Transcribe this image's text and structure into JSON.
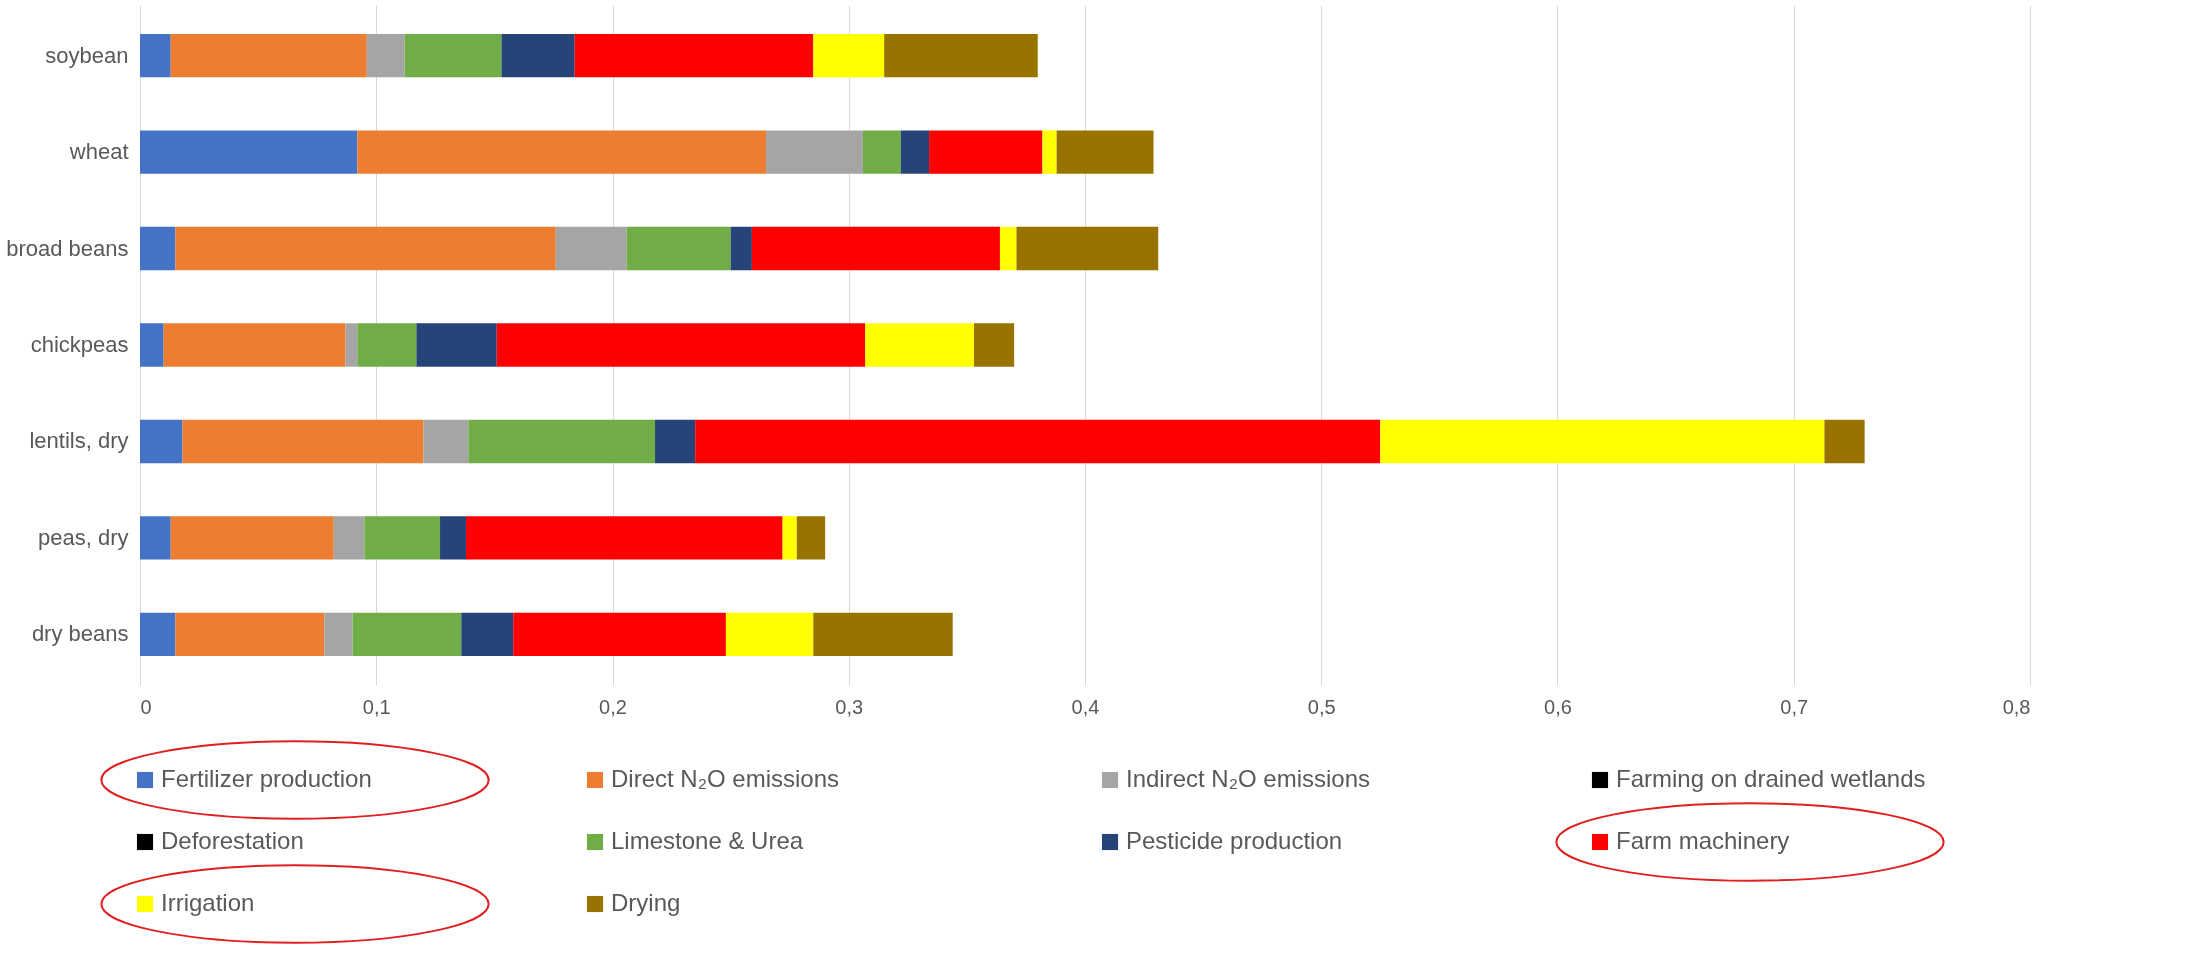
{
  "chart_data": {
    "type": "bar",
    "orientation": "horizontal",
    "stacked": true,
    "categories": [
      "soybean",
      "wheat",
      "broad beans",
      "chickpeas",
      "lentils, dry",
      "peas, dry",
      "dry beans"
    ],
    "series": [
      {
        "name": "Fertilizer production",
        "color": "#4472c4",
        "values": [
          0.013,
          0.092,
          0.015,
          0.01,
          0.018,
          0.013,
          0.015
        ]
      },
      {
        "name": "Direct N₂O emissions",
        "color": "#ed7d31",
        "values": [
          0.083,
          0.173,
          0.161,
          0.077,
          0.102,
          0.069,
          0.063
        ]
      },
      {
        "name": "Indirect N₂O emissions",
        "color": "#a5a5a5",
        "values": [
          0.016,
          0.041,
          0.03,
          0.005,
          0.019,
          0.013,
          0.012
        ]
      },
      {
        "name": "Farming on drained wetlands",
        "color": "#000000",
        "values": [
          0,
          0,
          0,
          0,
          0,
          0,
          0
        ]
      },
      {
        "name": "Deforestation",
        "color": "#000000",
        "values": [
          0,
          0,
          0,
          0,
          0,
          0,
          0
        ]
      },
      {
        "name": "Limestone & Urea",
        "color": "#70ad47",
        "values": [
          0.041,
          0.016,
          0.044,
          0.025,
          0.079,
          0.032,
          0.046
        ]
      },
      {
        "name": "Pesticide production",
        "color": "#264478",
        "values": [
          0.031,
          0.012,
          0.009,
          0.034,
          0.017,
          0.011,
          0.022
        ]
      },
      {
        "name": "Farm machinery",
        "color": "#ff0000",
        "values": [
          0.101,
          0.048,
          0.105,
          0.156,
          0.29,
          0.134,
          0.09
        ]
      },
      {
        "name": "Irrigation",
        "color": "#ffff00",
        "values": [
          0.03,
          0.006,
          0.007,
          0.046,
          0.188,
          0.006,
          0.037
        ]
      },
      {
        "name": "Drying",
        "color": "#997300",
        "values": [
          0.065,
          0.041,
          0.06,
          0.017,
          0.017,
          0.012,
          0.059
        ]
      }
    ],
    "xlim": [
      0,
      0.8
    ],
    "xticks": [
      0,
      {
        "value": 0.1,
        "label": "0,1"
      },
      {
        "value": 0.2,
        "label": "0,2"
      },
      {
        "value": 0.3,
        "label": "0,3"
      },
      {
        "value": 0.4,
        "label": "0,4"
      },
      {
        "value": 0.5,
        "label": "0,5"
      },
      {
        "value": 0.6,
        "label": "0,6"
      },
      {
        "value": 0.7,
        "label": "0,7"
      },
      {
        "value": 0.8,
        "label": "0,8"
      }
    ],
    "grid": "x",
    "legend": "bottom"
  }
}
